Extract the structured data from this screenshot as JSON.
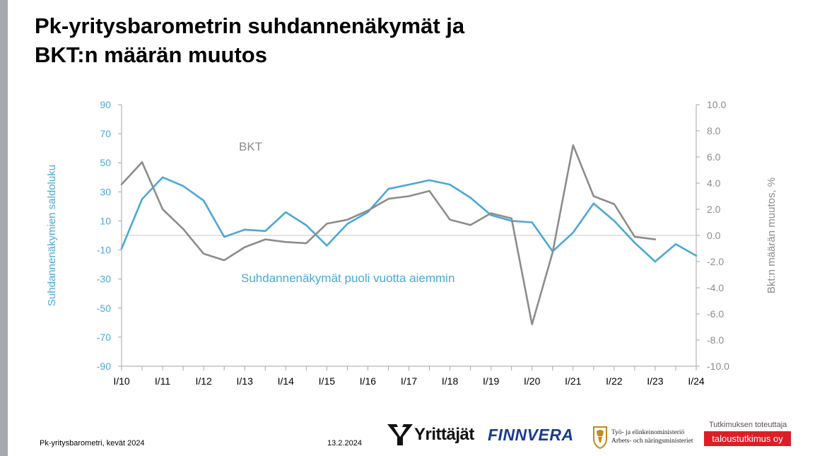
{
  "title_line1": "Pk-yritysbarometrin suhdannenäkymät ja",
  "title_line2": "BKT:n määrän muutos",
  "footer": {
    "left": "Pk-yritysbarometri, kevät 2024",
    "date": "13.2.2024",
    "provider_label": "Tutkimuksen toteuttaja",
    "provider_name": "taloustutkimus oy"
  },
  "logos": {
    "yrittajat": "Yrittäjät",
    "finnvera": "FINNVERA",
    "tem_line1": "Työ- ja elinkeinoministeriö",
    "tem_line2": "Arbets- och näringsministeriet"
  },
  "colors": {
    "blue": "#4aa8d6",
    "gray": "#8c8c8c",
    "left_bar": "#a6a9ad",
    "red": "#dc1f26"
  },
  "chart_data": {
    "type": "line",
    "x": [
      "I/10",
      "",
      "I/11",
      "",
      "I/12",
      "",
      "I/13",
      "",
      "I/14",
      "",
      "I/15",
      "",
      "I/16",
      "",
      "I/17",
      "",
      "I/18",
      "",
      "I/19",
      "",
      "I/20",
      "",
      "I/21",
      "",
      "I/22",
      "",
      "I/23",
      "",
      "I/24"
    ],
    "x_tick_labels": [
      "I/10",
      "I/11",
      "I/12",
      "I/13",
      "I/14",
      "I/15",
      "I/16",
      "I/17",
      "I/18",
      "I/19",
      "I/20",
      "I/21",
      "I/22",
      "I/23",
      "I/24"
    ],
    "y_left": {
      "label": "Suhdannenäkymien saldoluku",
      "range": [
        -90,
        90
      ],
      "ticks": [
        "90",
        "70",
        "50",
        "30",
        "10",
        "-10",
        "-30",
        "-50",
        "-70",
        "-90"
      ]
    },
    "y_right": {
      "label": "Bkt:n määrän muutos, %",
      "range": [
        -10,
        10
      ],
      "ticks": [
        "10.0",
        "8.0",
        "6.0",
        "4.0",
        "2.0",
        "0.0",
        "-2.0",
        "-4.0",
        "-6.0",
        "-8.0",
        "-10.0"
      ]
    },
    "series": [
      {
        "name": "Suhdannenäkymät puoli vuotta aiemmin",
        "axis": "left",
        "color": "#4aa8d6",
        "values": [
          -9,
          25,
          40,
          34,
          24,
          -1,
          4,
          3,
          16,
          7,
          -7,
          8,
          16,
          32,
          35,
          38,
          35,
          26,
          14,
          10,
          9,
          -11,
          2,
          22,
          10,
          -5,
          -18,
          -6,
          -14
        ]
      },
      {
        "name": "BKT",
        "axis": "right",
        "color": "#8c8c8c",
        "values": [
          3.9,
          5.6,
          2.0,
          0.5,
          -1.4,
          -1.9,
          -0.9,
          -0.3,
          -0.5,
          -0.6,
          0.9,
          1.2,
          1.9,
          2.8,
          3.0,
          3.4,
          1.2,
          0.8,
          1.7,
          1.3,
          -6.8,
          -1.3,
          6.9,
          3.0,
          2.4,
          -0.1,
          -0.3,
          null,
          null
        ]
      }
    ]
  }
}
